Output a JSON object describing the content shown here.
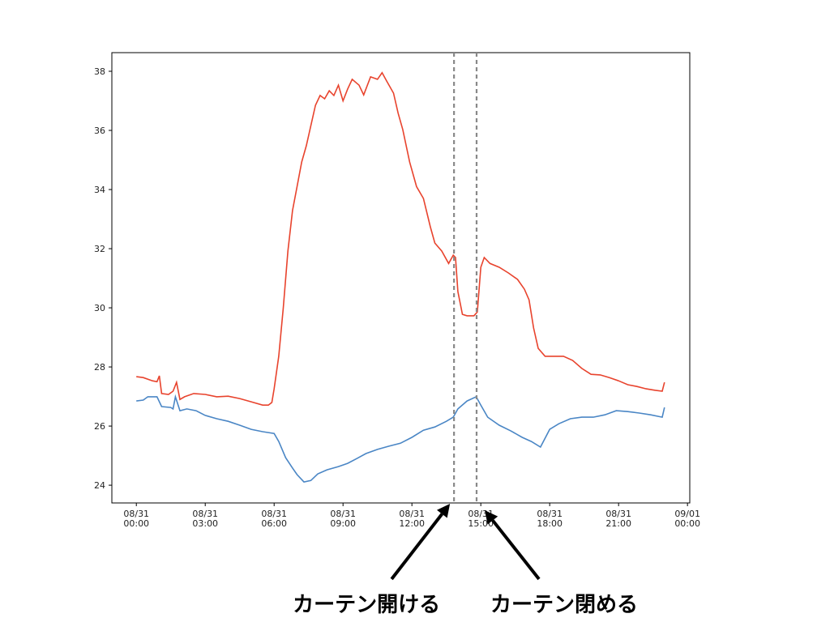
{
  "chart_data": {
    "type": "line",
    "xlim": [
      "08/30 22:56",
      "09/01 00:06"
    ],
    "xticks": [
      "08/31 00:00",
      "08/31 03:00",
      "08/31 06:00",
      "08/31 09:00",
      "08/31 12:00",
      "08/31 15:00",
      "08/31 18:00",
      "08/31 21:00",
      "09/01 00:00"
    ],
    "ylim": [
      23.4,
      38.63
    ],
    "yticks": [
      24,
      26,
      28,
      30,
      32,
      34,
      36,
      38
    ],
    "grid": false,
    "series": [
      {
        "color": "#e8432d",
        "x": [
          "08/31 00:00",
          "08/31 00:18",
          "08/31 00:42",
          "08/31 00:54",
          "08/31 01:00",
          "08/31 01:06",
          "08/31 01:24",
          "08/31 01:36",
          "08/31 01:45",
          "08/31 01:54",
          "08/31 02:06",
          "08/31 02:30",
          "08/31 03:00",
          "08/31 03:30",
          "08/31 04:00",
          "08/31 04:30",
          "08/31 05:00",
          "08/31 05:30",
          "08/31 05:45",
          "08/31 05:54",
          "08/31 06:00",
          "08/31 06:12",
          "08/31 06:24",
          "08/31 06:36",
          "08/31 06:48",
          "08/31 07:00",
          "08/31 07:12",
          "08/31 07:24",
          "08/31 07:36",
          "08/31 07:48",
          "08/31 08:00",
          "08/31 08:12",
          "08/31 08:24",
          "08/31 08:36",
          "08/31 08:48",
          "08/31 09:00",
          "08/31 09:12",
          "08/31 09:24",
          "08/31 09:42",
          "08/31 09:54",
          "08/31 10:12",
          "08/31 10:30",
          "08/31 10:42",
          "08/31 10:54",
          "08/31 11:12",
          "08/31 11:24",
          "08/31 11:36",
          "08/31 11:54",
          "08/31 12:12",
          "08/31 12:30",
          "08/31 12:48",
          "08/31 13:00",
          "08/31 13:18",
          "08/31 13:36",
          "08/31 13:48",
          "08/31 13:54",
          "08/31 14:00",
          "08/31 14:12",
          "08/31 14:24",
          "08/31 14:42",
          "08/31 14:51",
          "08/31 15:00",
          "08/31 15:09",
          "08/31 15:24",
          "08/31 15:48",
          "08/31 16:12",
          "08/31 16:36",
          "08/31 16:54",
          "08/31 17:06",
          "08/31 17:18",
          "08/31 17:30",
          "08/31 17:48",
          "08/31 18:12",
          "08/31 18:36",
          "08/31 19:00",
          "08/31 19:24",
          "08/31 19:48",
          "08/31 20:12",
          "08/31 20:36",
          "08/31 21:00",
          "08/31 21:24",
          "08/31 21:48",
          "08/31 22:12",
          "08/31 22:36",
          "08/31 22:54",
          "08/31 23:00"
        ],
        "values": [
          27.67,
          27.64,
          27.53,
          27.5,
          27.7,
          27.1,
          27.07,
          27.18,
          27.48,
          26.9,
          26.99,
          27.1,
          27.07,
          26.99,
          27.01,
          26.93,
          26.82,
          26.71,
          26.71,
          26.8,
          27.26,
          28.36,
          30.0,
          31.92,
          33.29,
          34.1,
          34.93,
          35.48,
          36.16,
          36.85,
          37.18,
          37.07,
          37.34,
          37.18,
          37.53,
          37.0,
          37.4,
          37.73,
          37.53,
          37.2,
          37.81,
          37.73,
          37.95,
          37.67,
          37.26,
          36.58,
          36.03,
          34.93,
          34.1,
          33.7,
          32.74,
          32.19,
          31.92,
          31.5,
          31.78,
          31.7,
          30.55,
          29.78,
          29.73,
          29.73,
          29.86,
          31.37,
          31.7,
          31.5,
          31.37,
          31.18,
          30.96,
          30.63,
          30.27,
          29.32,
          28.63,
          28.36,
          28.36,
          28.36,
          28.22,
          27.95,
          27.75,
          27.73,
          27.64,
          27.53,
          27.4,
          27.34,
          27.26,
          27.21,
          27.18,
          27.48
        ]
      },
      {
        "color": "#4a86c5",
        "x": [
          "08/31 00:00",
          "08/31 00:18",
          "08/31 00:30",
          "08/31 00:54",
          "08/31 01:06",
          "08/31 01:30",
          "08/31 01:36",
          "08/31 01:42",
          "08/31 01:54",
          "08/31 02:12",
          "08/31 02:36",
          "08/31 03:00",
          "08/31 03:30",
          "08/31 04:00",
          "08/31 04:30",
          "08/31 05:00",
          "08/31 05:30",
          "08/31 06:00",
          "08/31 06:12",
          "08/31 06:30",
          "08/31 06:48",
          "08/31 07:00",
          "08/31 07:18",
          "08/31 07:36",
          "08/31 07:54",
          "08/31 08:18",
          "08/31 08:48",
          "08/31 09:12",
          "08/31 09:36",
          "08/31 10:00",
          "08/31 10:30",
          "08/31 11:00",
          "08/31 11:30",
          "08/31 12:00",
          "08/31 12:30",
          "08/31 13:00",
          "08/31 13:30",
          "08/31 13:48",
          "08/31 14:00",
          "08/31 14:24",
          "08/31 14:48",
          "08/31 15:00",
          "08/31 15:18",
          "08/31 15:48",
          "08/31 16:18",
          "08/31 16:48",
          "08/31 17:12",
          "08/31 17:36",
          "08/31 18:00",
          "08/31 18:24",
          "08/31 18:54",
          "08/31 19:24",
          "08/31 19:54",
          "08/31 20:24",
          "08/31 20:54",
          "08/31 21:24",
          "08/31 21:54",
          "08/31 22:24",
          "08/31 22:54",
          "08/31 23:00"
        ],
        "values": [
          26.85,
          26.88,
          26.99,
          26.99,
          26.66,
          26.63,
          26.58,
          26.99,
          26.52,
          26.58,
          26.52,
          26.36,
          26.25,
          26.16,
          26.03,
          25.89,
          25.81,
          25.75,
          25.48,
          24.93,
          24.58,
          24.36,
          24.11,
          24.16,
          24.38,
          24.52,
          24.63,
          24.74,
          24.9,
          25.07,
          25.21,
          25.32,
          25.42,
          25.62,
          25.86,
          25.97,
          26.16,
          26.3,
          26.58,
          26.85,
          26.99,
          26.71,
          26.3,
          26.03,
          25.84,
          25.62,
          25.48,
          25.29,
          25.89,
          26.08,
          26.25,
          26.3,
          26.3,
          26.38,
          26.52,
          26.49,
          26.44,
          26.38,
          26.3,
          26.63
        ]
      }
    ],
    "vlines": [
      {
        "x": "08/31 13:50",
        "label": "カーテン開ける"
      },
      {
        "x": "08/31 14:49",
        "label": "カーテン閉める"
      }
    ],
    "vline_color": "#888888"
  }
}
